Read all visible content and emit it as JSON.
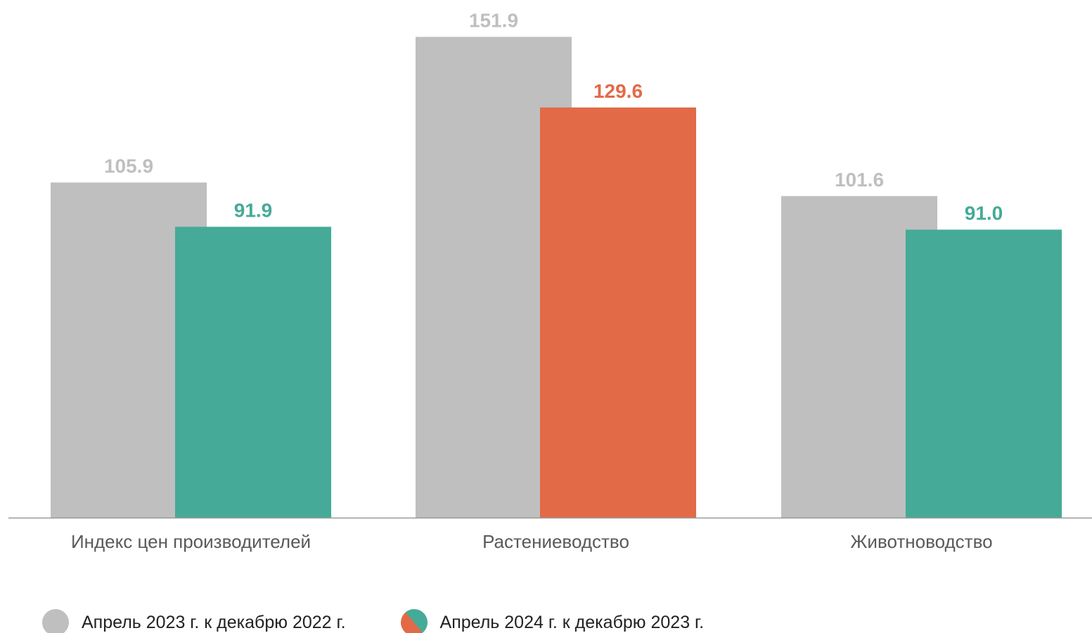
{
  "chart_data": {
    "type": "bar",
    "categories": [
      "Индекс цен производителей",
      "Растениеводство",
      "Животноводство"
    ],
    "series": [
      {
        "name": "Апрель 2023 г. к декабрю 2022 г.",
        "values": [
          105.9,
          151.9,
          101.6
        ],
        "value_labels": [
          "105.9",
          "151.9",
          "101.6"
        ],
        "colors": [
          "#bfbfbf",
          "#bfbfbf",
          "#bfbfbf"
        ],
        "label_colors": [
          "#bfbfbf",
          "#bfbfbf",
          "#bfbfbf"
        ]
      },
      {
        "name": "Апрель 2024 г. к декабрю 2023 г.",
        "values": [
          91.9,
          129.6,
          91.0
        ],
        "value_labels": [
          "91.9",
          "129.6",
          "91.0"
        ],
        "colors": [
          "#45aa98",
          "#e26a47",
          "#45aa98"
        ],
        "label_colors": [
          "#45aa98",
          "#e26a47",
          "#45aa98"
        ]
      }
    ],
    "ylim": [
      0,
      160
    ],
    "grid": false,
    "legend_position": "bottom-left",
    "category_label_color": "#595959",
    "axis_color": "#999999"
  },
  "legend": {
    "items": [
      {
        "label": "Апрель 2023 г. к декабрю 2022 г."
      },
      {
        "label": "Апрель 2024 г. к декабрю 2023 г."
      }
    ],
    "colors": {
      "gray": "#bfbfbf",
      "teal": "#45aa98",
      "orange": "#e26a47"
    }
  }
}
